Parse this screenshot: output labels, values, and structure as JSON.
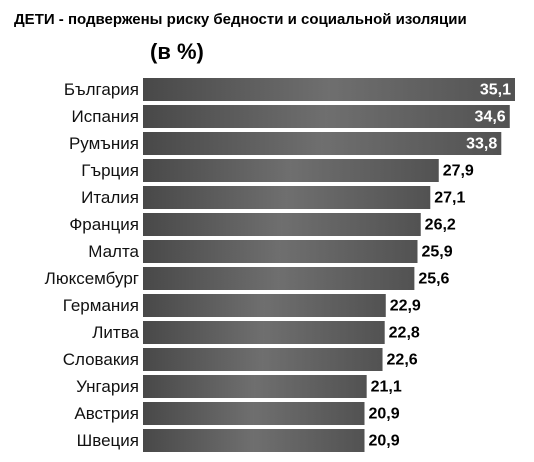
{
  "chart_data": {
    "type": "bar",
    "orientation": "horizontal",
    "title": "ДЕТИ - подвержены риску бедности и социальной изоляции",
    "subtitle": "(в %)",
    "categories": [
      "България",
      "Испания",
      "Румъния",
      "Гърция",
      "Италия",
      "Франция",
      "Малта",
      "Люксембург",
      "Германия",
      "Литва",
      "Словакия",
      "Унгария",
      "Австрия",
      "Швеция"
    ],
    "values": [
      35.1,
      34.6,
      33.8,
      27.9,
      27.1,
      26.2,
      25.9,
      25.6,
      22.9,
      22.8,
      22.6,
      21.1,
      20.9,
      20.9
    ],
    "value_labels": [
      "35,1",
      "34,6",
      "33,8",
      "27,9",
      "27,1",
      "26,2",
      "25,9",
      "25,6",
      "22,9",
      "22,8",
      "22,6",
      "21,1",
      "20,9",
      "20,9"
    ],
    "color": "#5e5e5e"
  }
}
